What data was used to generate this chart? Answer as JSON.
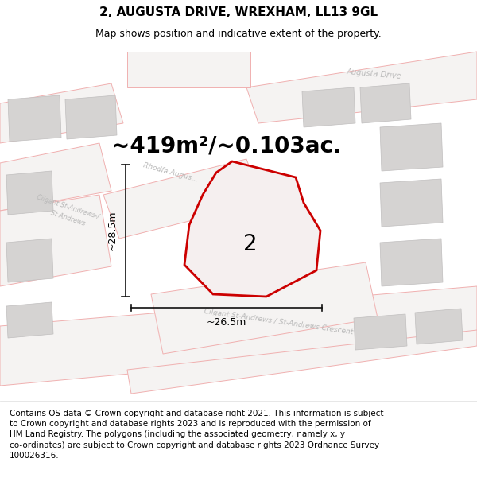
{
  "title": "2, AUGUSTA DRIVE, WREXHAM, LL13 9GL",
  "subtitle": "Map shows position and indicative extent of the property.",
  "area_text": "~419m²/~0.103ac.",
  "dim_width": "~26.5m",
  "dim_height": "~28.5m",
  "property_label": "2",
  "footer_text": "Contains OS data © Crown copyright and database right 2021. This information is subject\nto Crown copyright and database rights 2023 and is reproduced with the permission of\nHM Land Registry. The polygons (including the associated geometry, namely x, y\nco-ordinates) are subject to Crown copyright and database rights 2023 Ordnance Survey\n100026316.",
  "map_bg": "#edecea",
  "road_fill": "#f5f3f2",
  "road_stroke": "#f0b0b0",
  "building_fill": "#d5d3d2",
  "building_stroke": "#c0bebe",
  "prop_stroke": "#cc0000",
  "prop_fill": "#f5efef",
  "road_label_color": "#b8b8b8",
  "dim_color": "#111111",
  "white": "#ffffff",
  "title_fs": 11,
  "subtitle_fs": 9,
  "area_fs": 20,
  "plabel_fs": 20,
  "footer_fs": 7.5,
  "dim_fs": 9,
  "road_label_fs": 7
}
